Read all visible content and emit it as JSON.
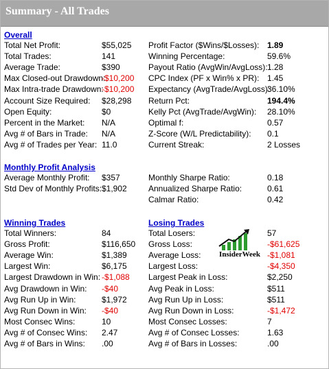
{
  "window": {
    "title": "Summary - All Trades"
  },
  "sections": {
    "overall": "Overall",
    "monthly": "Monthly Profit Analysis",
    "winning": "Winning Trades",
    "losing": "Losing Trades"
  },
  "overall_left": [
    {
      "label": "Total Net Profit:",
      "value": "$55,025"
    },
    {
      "label": "Total Trades:",
      "value": "141"
    },
    {
      "label": "Average Trade:",
      "value": "$390"
    },
    {
      "label": "Max Closed-out Drawdown:",
      "value": "-$10,200",
      "negative": true
    },
    {
      "label": "Max Intra-trade Drawdown:",
      "value": "-$10,200",
      "negative": true
    },
    {
      "label": "Account Size Required:",
      "value": "$28,298"
    },
    {
      "label": "Open Equity:",
      "value": "$0"
    },
    {
      "label": "Percent in the Market:",
      "value": "N/A"
    },
    {
      "label": "Avg # of Bars in Trade:",
      "value": "N/A"
    },
    {
      "label": "Avg # of Trades per Year:",
      "value": "11.0"
    }
  ],
  "overall_right": [
    {
      "label": "Profit Factor ($Wins/$Losses):",
      "value": "1.89",
      "bold": true
    },
    {
      "label": "Winning Percentage:",
      "value": "59.6%"
    },
    {
      "label": "Payout Ratio (AvgWin/AvgLoss):",
      "value": "1.28"
    },
    {
      "label": "CPC Index (PF x Win% x PR):",
      "value": "1.45"
    },
    {
      "label": "Expectancy (AvgTrade/AvgLoss):",
      "value": "36.10%"
    },
    {
      "label": "Return Pct:",
      "value": "194.4%",
      "bold": true
    },
    {
      "label": "Kelly Pct (AvgTrade/AvgWin):",
      "value": "28.10%"
    },
    {
      "label": "Optimal f:",
      "value": "0.57"
    },
    {
      "label": "Z-Score (W/L Predictability):",
      "value": "0.1"
    },
    {
      "label": "Current Streak:",
      "value": "2 Losses"
    }
  ],
  "monthly_left": [
    {
      "label": "Average Monthly Profit:",
      "value": "$357"
    },
    {
      "label": "Std Dev of Monthly Profits:",
      "value": "$1,902"
    }
  ],
  "monthly_right": [
    {
      "label": "Monthly Sharpe Ratio:",
      "value": "0.18"
    },
    {
      "label": "Annualized Sharpe Ratio:",
      "value": "0.61"
    },
    {
      "label": "Calmar Ratio:",
      "value": "0.42"
    }
  ],
  "winning": [
    {
      "label": "Total Winners:",
      "value": "84"
    },
    {
      "label": "Gross Profit:",
      "value": "$116,650"
    },
    {
      "label": "Average Win:",
      "value": "$1,389"
    },
    {
      "label": "Largest Win:",
      "value": "$6,175"
    },
    {
      "label": "Largest Drawdown in Win:",
      "value": "-$1,088",
      "negative": true
    },
    {
      "label": "Avg Drawdown in Win:",
      "value": "-$40",
      "negative": true
    },
    {
      "label": "Avg Run Up in Win:",
      "value": "$1,972"
    },
    {
      "label": "Avg Run Down in Win:",
      "value": "-$40",
      "negative": true
    },
    {
      "label": "Most Consec Wins:",
      "value": "10"
    },
    {
      "label": "Avg # of Consec Wins:",
      "value": "2.47"
    },
    {
      "label": "Avg # of Bars in Wins:",
      "value": ".00"
    }
  ],
  "losing": [
    {
      "label": "Total Losers:",
      "value": "57"
    },
    {
      "label": "Gross Loss:",
      "value": "-$61,625",
      "negative": true
    },
    {
      "label": "Average Loss:",
      "value": "-$1,081",
      "negative": true
    },
    {
      "label": "Largest Loss:",
      "value": "-$4,350",
      "negative": true
    },
    {
      "label": "Largest Peak in Loss:",
      "value": "$2,250"
    },
    {
      "label": "Avg Peak in Loss:",
      "value": "$511"
    },
    {
      "label": "Avg Run Up in Loss:",
      "value": "$511"
    },
    {
      "label": "Avg Run Down in Loss:",
      "value": "-$1,472",
      "negative": true
    },
    {
      "label": "Most Consec Losses:",
      "value": "7"
    },
    {
      "label": "Avg # of Consec Losses:",
      "value": "1.63"
    },
    {
      "label": "Avg # of Bars in Losses:",
      "value": ".00"
    }
  ],
  "watermark": {
    "text": "InsiderWeek",
    "icon": "rising-chart-icon"
  },
  "colors": {
    "title_bar": "#a8a8a8",
    "section_heading": "#0000c8",
    "negative_value": "#e00000",
    "logo_green": "#2e9b2e"
  }
}
